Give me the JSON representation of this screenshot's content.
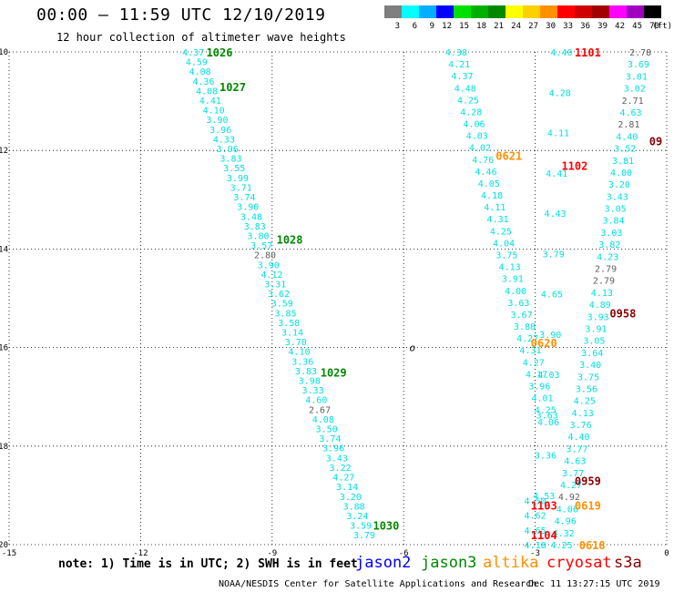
{
  "header": {
    "title": "00:00 – 11:59 UTC 12/10/2019",
    "subtitle": "12 hour collection of altimeter wave heights"
  },
  "legend": {
    "swatches": [
      {
        "label": "3",
        "color": "#7f7f7f"
      },
      {
        "label": "6",
        "color": "#00ffff"
      },
      {
        "label": "9",
        "color": "#00b0ff"
      },
      {
        "label": "12",
        "color": "#0000ff"
      },
      {
        "label": "15",
        "color": "#00e000"
      },
      {
        "label": "18",
        "color": "#00b000"
      },
      {
        "label": "21",
        "color": "#008800"
      },
      {
        "label": "24",
        "color": "#ffff00"
      },
      {
        "label": "27",
        "color": "#ffd000"
      },
      {
        "label": "30",
        "color": "#ff9000"
      },
      {
        "label": "33",
        "color": "#ff0000"
      },
      {
        "label": "36",
        "color": "#d00000"
      },
      {
        "label": "39",
        "color": "#a00000"
      },
      {
        "label": "42",
        "color": "#ff00ff"
      },
      {
        "label": "45",
        "color": "#a000c0"
      },
      {
        "label": "70",
        "color": "#000000"
      }
    ],
    "unit": "(ft)"
  },
  "chart_data": {
    "type": "scatter",
    "xlim": [
      -15,
      0
    ],
    "ylim": [
      -20,
      -10
    ],
    "x_ticks": [
      "-15",
      "-12",
      "-9",
      "-6",
      "-3",
      "0"
    ],
    "y_ticks": [
      "-10",
      "-12",
      "-14",
      "-16",
      "-18",
      "-20"
    ],
    "grid": true,
    "colors": {
      "cyan": "#00e0e0",
      "gray": "#606060",
      "jason3": "#008800",
      "altika": "#ff9000",
      "cryosat": "#ff0000",
      "s3a": "#880000"
    },
    "tracks": [
      {
        "name": "jason3 track",
        "x0": -10.8,
        "x1": -6.9,
        "y0": -10.0,
        "y1": -19.8,
        "color": "cyan",
        "values": [
          "4.37",
          "4.59",
          "4.08",
          "4.36",
          "4.08",
          "4.41",
          "4.10",
          "3.90",
          "3.96",
          "4.33",
          "3.96",
          "3.83",
          "3.55",
          "3.99",
          "3.71",
          "3.74",
          "3.90",
          "3.48",
          "3.83",
          "3.80",
          "3.57",
          "2.80",
          "3.90",
          "4.12",
          "3.31",
          "3.62",
          "3.59",
          "3.85",
          "3.58",
          "3.14",
          "3.70",
          "4.10",
          "3.36",
          "3.83",
          "3.98",
          "3.33",
          "4.60",
          "2.67",
          "4.08",
          "3.50",
          "3.74",
          "3.96",
          "3.43",
          "3.22",
          "4.27",
          "3.14",
          "3.20",
          "3.88",
          "3.24",
          "3.59",
          "3.79"
        ],
        "gray_indices": [
          21,
          37
        ]
      },
      {
        "name": "altika track",
        "x0": -4.8,
        "x1": -2.7,
        "y0": -10.0,
        "y1": -17.5,
        "color": "cyan",
        "values": [
          "4.38",
          "4.21",
          "4.37",
          "4.48",
          "4.25",
          "4.28",
          "4.06",
          "4.03",
          "4.02",
          "4.76",
          "4.46",
          "4.05",
          "4.18",
          "4.11",
          "4.31",
          "4.25",
          "4.04",
          "3.75",
          "4.13",
          "3.91",
          "4.00",
          "3.63",
          "3.67",
          "3.88",
          "4.27",
          "4.31",
          "4.27",
          "4.17",
          "3.96",
          "4.01",
          "4.25",
          "4.06"
        ],
        "gray_indices": []
      },
      {
        "name": "cryosat track",
        "x0": -2.4,
        "x1": -2.8,
        "y0": -10.0,
        "y1": -19.0,
        "color": "cyan",
        "values": [
          "4.40",
          "4.28",
          "4.11",
          "4.41",
          "4.43",
          "3.79",
          "4.65",
          "3.90",
          "4.03",
          "3.63",
          "3.36",
          "4.53"
        ],
        "gray_indices": []
      },
      {
        "name": "s3a track",
        "x0": -0.6,
        "x1": -2.4,
        "y0": -10.0,
        "y1": -20.0,
        "color": "cyan",
        "values": [
          "2.78",
          "3.69",
          "3.01",
          "3.02",
          "2.71",
          "4.63",
          "2.81",
          "4.40",
          "3.52",
          "3.81",
          "4.00",
          "3.20",
          "3.43",
          "3.05",
          "3.84",
          "3.03",
          "3.82",
          "4.23",
          "2.79",
          "2.79",
          "4.13",
          "4.89",
          "3.93",
          "3.91",
          "3.05",
          "3.64",
          "3.40",
          "3.75",
          "3.56",
          "4.25",
          "4.13",
          "3.76",
          "4.40",
          "3.77",
          "4.63",
          "3.77",
          "4.27",
          "4.92",
          "4.06",
          "4.96",
          "4.32",
          "4.25"
        ],
        "gray_indices": [
          0,
          4,
          6,
          18,
          19,
          37
        ]
      },
      {
        "name": "cluster",
        "x0": -3.0,
        "x1": -3.0,
        "y0": -19.1,
        "y1": -20.0,
        "color": "cyan",
        "values": [
          "4.50",
          "4.62",
          "4.65",
          "4.18"
        ],
        "gray_indices": []
      }
    ],
    "pass_labels": [
      {
        "text": "1026",
        "x": -10.2,
        "y": -10.0,
        "sat": "jason3"
      },
      {
        "text": "1027",
        "x": -9.9,
        "y": -10.7,
        "sat": "jason3"
      },
      {
        "text": "1028",
        "x": -8.6,
        "y": -13.8,
        "sat": "jason3"
      },
      {
        "text": "1029",
        "x": -7.6,
        "y": -16.5,
        "sat": "jason3"
      },
      {
        "text": "1030",
        "x": -6.4,
        "y": -19.6,
        "sat": "jason3"
      },
      {
        "text": "1101",
        "x": -1.8,
        "y": -10.0,
        "sat": "cryosat"
      },
      {
        "text": "1102",
        "x": -2.1,
        "y": -12.3,
        "sat": "cryosat"
      },
      {
        "text": "1103",
        "x": -2.8,
        "y": -19.2,
        "sat": "cryosat"
      },
      {
        "text": "1104",
        "x": -2.8,
        "y": -19.8,
        "sat": "cryosat"
      },
      {
        "text": "0621",
        "x": -3.6,
        "y": -12.1,
        "sat": "altika"
      },
      {
        "text": "0620",
        "x": -2.8,
        "y": -15.9,
        "sat": "altika"
      },
      {
        "text": "0619",
        "x": -1.8,
        "y": -19.2,
        "sat": "altika"
      },
      {
        "text": "0618",
        "x": -1.7,
        "y": -20.0,
        "sat": "altika"
      },
      {
        "text": "09",
        "x": -0.25,
        "y": -11.8,
        "sat": "s3a"
      },
      {
        "text": "0958",
        "x": -1.0,
        "y": -15.3,
        "sat": "s3a"
      },
      {
        "text": "0959",
        "x": -1.8,
        "y": -18.7,
        "sat": "s3a"
      }
    ],
    "annotation": {
      "text": "o",
      "x": -5.8,
      "y": -16.0
    }
  },
  "footer": {
    "note": "note: 1) Time is in UTC; 2) SWH is in feet",
    "satellites": [
      {
        "name": "jason2",
        "color": "#0000ff"
      },
      {
        "name": "jason3",
        "color": "#008800"
      },
      {
        "name": "altika",
        "color": "#ff9000"
      },
      {
        "name": "cryosat",
        "color": "#ff0000"
      },
      {
        "name": "s3a",
        "color": "#880000"
      }
    ],
    "credit": "NOAA/NESDIS Center for Satellite Applications and Research",
    "timestamp": "Dec 11 13:27:15 UTC 2019"
  }
}
